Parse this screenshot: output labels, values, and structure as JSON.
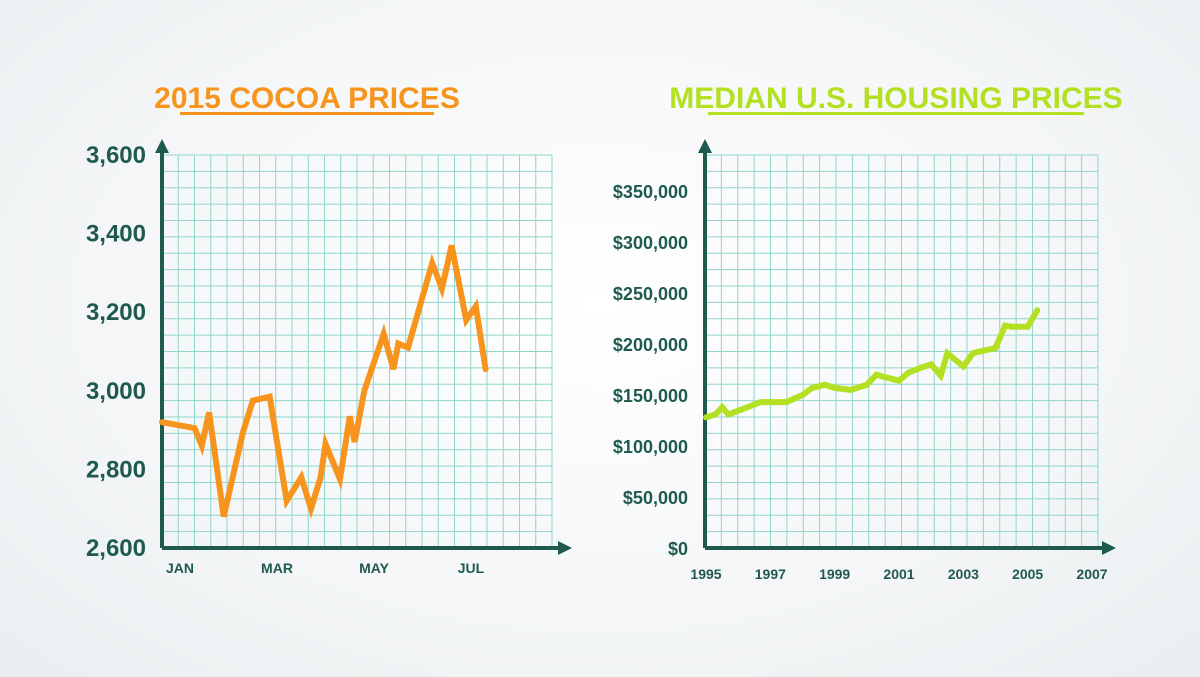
{
  "chart_data": [
    {
      "type": "line",
      "title": "2015 COCOA PRICES",
      "xlabel": "",
      "ylabel": "",
      "ylim": [
        2600,
        3600
      ],
      "yticks": [
        "2,600",
        "2,800",
        "3,000",
        "3,200",
        "3,400",
        "3,600"
      ],
      "xticks": [
        "JAN",
        "MAR",
        "MAY",
        "JUL"
      ],
      "grid": true,
      "series": [
        {
          "x": [
            1,
            1.3,
            1.45,
            1.6,
            1.9,
            2.3,
            2.5,
            2.85,
            3.0,
            3.2,
            3.5,
            3.7,
            3.9,
            4.0,
            4.3,
            4.5,
            4.6,
            4.8,
            5.2,
            5.4,
            5.5,
            5.7,
            6.2,
            6.4,
            6.6,
            6.9,
            7.1,
            7.3
          ],
          "y": [
            2920,
            2905,
            2860,
            2945,
            2680,
            2895,
            2975,
            2985,
            2870,
            2720,
            2780,
            2700,
            2780,
            2865,
            2775,
            2935,
            2870,
            3000,
            3145,
            3055,
            3120,
            3110,
            3325,
            3260,
            3370,
            3180,
            3215,
            3055
          ]
        }
      ],
      "colors": {
        "line": "#f7941d",
        "title": "#f7941d",
        "grid": "#8fd6cc",
        "axis": "#1f5a4f"
      }
    },
    {
      "type": "line",
      "title": "MEDIAN U.S. HOUSING PRICES",
      "xlabel": "",
      "ylabel": "",
      "ylim": [
        0,
        400000
      ],
      "xlim": [
        1995,
        2007
      ],
      "yticks": [
        "$0",
        "$50,000",
        "$100,000",
        "$150,000",
        "$200,000",
        "$250,000",
        "$300,000",
        "$350,000"
      ],
      "xticks": [
        "1995",
        "1997",
        "1999",
        "2001",
        "2003",
        "2005",
        "2007"
      ],
      "grid": true,
      "series": [
        {
          "x": [
            1995.0,
            1995.3,
            1995.5,
            1995.7,
            1996.2,
            1996.7,
            1997.0,
            1997.5,
            1998.0,
            1998.3,
            1998.7,
            1999.0,
            1999.5,
            1999.7,
            2000.0,
            2000.3,
            2000.5,
            2001.0,
            2001.3,
            2001.7,
            2002.0,
            2002.3,
            2002.5,
            2003.0,
            2003.3,
            2003.7,
            2004.0,
            2004.3,
            2004.5,
            2005.0,
            2005.3
          ],
          "y": [
            128000,
            131000,
            138000,
            131000,
            137000,
            143000,
            143000,
            143000,
            150000,
            157000,
            160000,
            157000,
            155000,
            157000,
            160000,
            170000,
            168000,
            164000,
            172000,
            177000,
            180000,
            169000,
            191000,
            178000,
            191000,
            194000,
            196000,
            218000,
            217000,
            217000,
            233000
          ]
        }
      ],
      "colors": {
        "line": "#b3e023",
        "title": "#b3e023",
        "grid": "#8fd6cc",
        "axis": "#1f5a4f"
      }
    }
  ]
}
